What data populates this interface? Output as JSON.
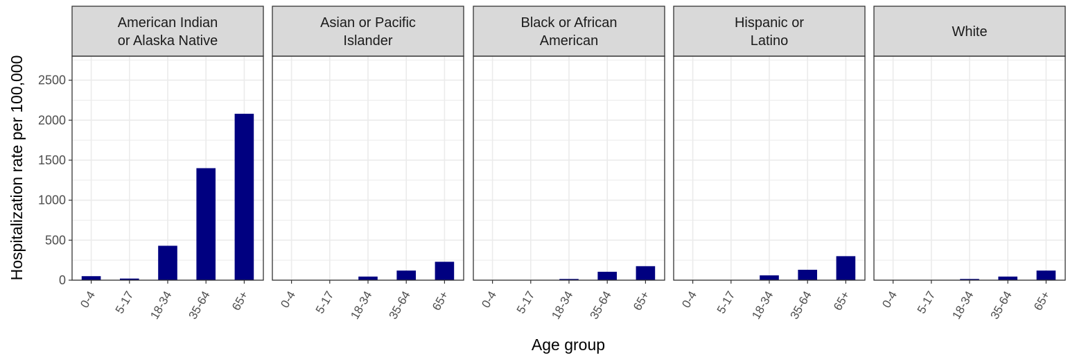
{
  "chart_data": {
    "type": "bar",
    "facet_type": "facet_wrap",
    "xlabel": "Age group",
    "ylabel": "Hospitalization rate per 100,000",
    "categories": [
      "0-4",
      "5-17",
      "18-34",
      "35-64",
      "65+"
    ],
    "ylim": [
      0,
      2800
    ],
    "yticks": [
      0,
      500,
      1000,
      1500,
      2000,
      2500
    ],
    "grid": true,
    "legend": "none",
    "bar_color": "#000080",
    "strip_fill": "#d9d9d9",
    "grid_color": "#ebebeb",
    "border_color": "#333333",
    "facets": [
      {
        "title_lines": [
          "American Indian",
          "or Alaska Native"
        ],
        "values": [
          50,
          20,
          430,
          1400,
          2080
        ]
      },
      {
        "title_lines": [
          "Asian or Pacific",
          "Islander"
        ],
        "values": [
          1,
          1,
          45,
          120,
          230
        ]
      },
      {
        "title_lines": [
          "Black or African",
          "American"
        ],
        "values": [
          1,
          1,
          15,
          105,
          175
        ]
      },
      {
        "title_lines": [
          "Hispanic or",
          "Latino"
        ],
        "values": [
          1,
          1,
          60,
          130,
          300
        ]
      },
      {
        "title_lines": [
          "White"
        ],
        "values": [
          1,
          1,
          15,
          45,
          120
        ]
      }
    ]
  }
}
